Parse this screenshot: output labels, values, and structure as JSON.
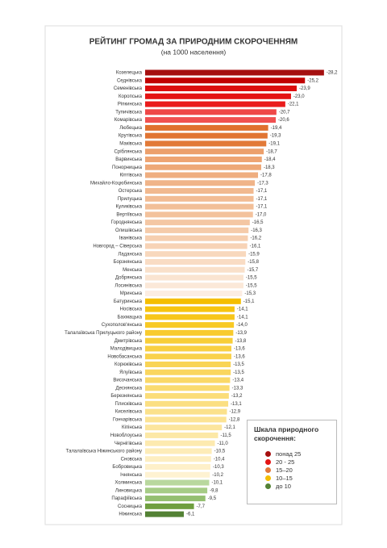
{
  "chart_data": {
    "type": "bar",
    "orientation": "horizontal",
    "title": "РЕЙТИНГ ГРОМАД ЗА ПРИРОДНИМ СКОРОЧЕННЯМ",
    "subtitle": "(на 1000 населення)",
    "categories": [
      "Козелецька",
      "Седнівська",
      "Семенівська",
      "Коропська",
      "Ріпкинська",
      "Тупичівська",
      "Комарівська",
      "Любецька",
      "Крутівська",
      "Маківська",
      "Сріблянська",
      "Варвинська",
      "Понорницька",
      "Кіптівська",
      "Михайло-Коцюбинська",
      "Остерська",
      "Прилуцька",
      "Куликівська",
      "Вертіївська",
      "Городнянська",
      "Олишівська",
      "Іванівська",
      "Новгород – Сіверська",
      "Ладанська",
      "Борзнянська",
      "Менська",
      "Добрянська",
      "Лосинівська",
      "Мринська",
      "Батуринська",
      "Носівська",
      "Бахмацька",
      "Сухополов'янська",
      "Талалаївська Прилуцького району",
      "Дмитрівська",
      "Малодівицька",
      "Новобасанська",
      "Корюківська",
      "Ялуївська",
      "Височанська",
      "Деснянська",
      "Березнянська",
      "Плисківська",
      "Киселівська",
      "Гончарівська",
      "Кіпінська",
      "Новоблоуська",
      "Чернігівська",
      "Талалаївська Ніжинського району",
      "Сновська",
      "Бобровицька",
      "Ічнянська",
      "Холминська",
      "Линовицька",
      "Парафіївська",
      "Сосницька",
      "Ніжинська"
    ],
    "values": [
      -28.2,
      -25.2,
      -23.9,
      -23.0,
      -22.1,
      -20.7,
      -20.6,
      -19.4,
      -19.3,
      -19.1,
      -18.7,
      -18.4,
      -18.3,
      -17.8,
      -17.3,
      -17.1,
      -17.1,
      -17.1,
      -17.0,
      -16.5,
      -16.3,
      -16.2,
      -16.1,
      -15.9,
      -15.8,
      -15.7,
      -15.5,
      -15.5,
      -15.3,
      -15.1,
      -14.1,
      -14.1,
      -14.0,
      -13.9,
      -13.8,
      -13.6,
      -13.6,
      -13.5,
      -13.5,
      -13.4,
      -13.3,
      -13.2,
      -13.1,
      -12.9,
      -12.8,
      -12.1,
      -11.5,
      -11.0,
      -10.5,
      -10.4,
      -10.3,
      -10.2,
      -10.1,
      -9.8,
      -9.5,
      -7.7,
      -6.1
    ],
    "value_labels": [
      "-28,2",
      "-25,2",
      "-23,9",
      "-23,0",
      "-22,1",
      "-20,7",
      "-20,6",
      "-19,4",
      "-19,3",
      "-19,1",
      "-18,7",
      "-18,4",
      "-18,3",
      "-17,8",
      "-17,3",
      "-17,1",
      "-17,1",
      "-17,1",
      "-17,0",
      "-16,5",
      "-16,3",
      "-16,2",
      "-16,1",
      "-15,9",
      "-15,8",
      "-15,7",
      "-15,5",
      "-15,5",
      "-15,3",
      "-15,1",
      "-14,1",
      "-14,1",
      "-14,0",
      "-13,9",
      "-13,8",
      "-13,6",
      "-13,6",
      "-13,5",
      "-13,5",
      "-13,4",
      "-13,3",
      "-13,2",
      "-13,1",
      "-12,9",
      "-12,8",
      "-12,1",
      "-11,5",
      "-11,0",
      "-10,5",
      "-10,4",
      "-10,3",
      "-10,2",
      "-10,1",
      "-9,8",
      "-9,5",
      "-7,7",
      "-6,1"
    ],
    "colors": [
      "#a50f0f",
      "#c00000",
      "#dc0d0d",
      "#e41414",
      "#ea1c1c",
      "#ef4848",
      "#f05050",
      "#e0702e",
      "#e17533",
      "#e27a38",
      "#eca06c",
      "#eea472",
      "#eea877",
      "#efae80",
      "#f0b489",
      "#f1b98f",
      "#f2bc94",
      "#f2bf98",
      "#f3c29c",
      "#f4c7a4",
      "#f5cbaa",
      "#f6cfb0",
      "#f7d3b6",
      "#f8d8bd",
      "#f9dcc4",
      "#f9e0ca",
      "#fae4d1",
      "#fbe8d8",
      "#fcede2",
      "#f5be00",
      "#f7c410",
      "#f7c61a",
      "#f8c924",
      "#f8cb2e",
      "#f8ce38",
      "#f9d042",
      "#f9d24b",
      "#f9d455",
      "#fad65e",
      "#fad867",
      "#fadb70",
      "#fbdd79",
      "#fbdf82",
      "#fbe18b",
      "#fce394",
      "#fce59d",
      "#fce8a6",
      "#fdeaaf",
      "#fdecb8",
      "#fdeec1",
      "#fef0c9",
      "#fef2d2",
      "#b9d89e",
      "#a6cc86",
      "#94bf70",
      "#6f9f3f",
      "#548235"
    ],
    "xlim": [
      0,
      -30
    ],
    "legend_title": "Шкала природного скорочення:",
    "legend": [
      {
        "label": "понад 25",
        "color": "#a50f0f"
      },
      {
        "label": "20 - 25",
        "color": "#e41414"
      },
      {
        "label": "15–20",
        "color": "#e2783a"
      },
      {
        "label": "10–15",
        "color": "#f5be00"
      },
      {
        "label": "до 10",
        "color": "#548235"
      }
    ]
  }
}
